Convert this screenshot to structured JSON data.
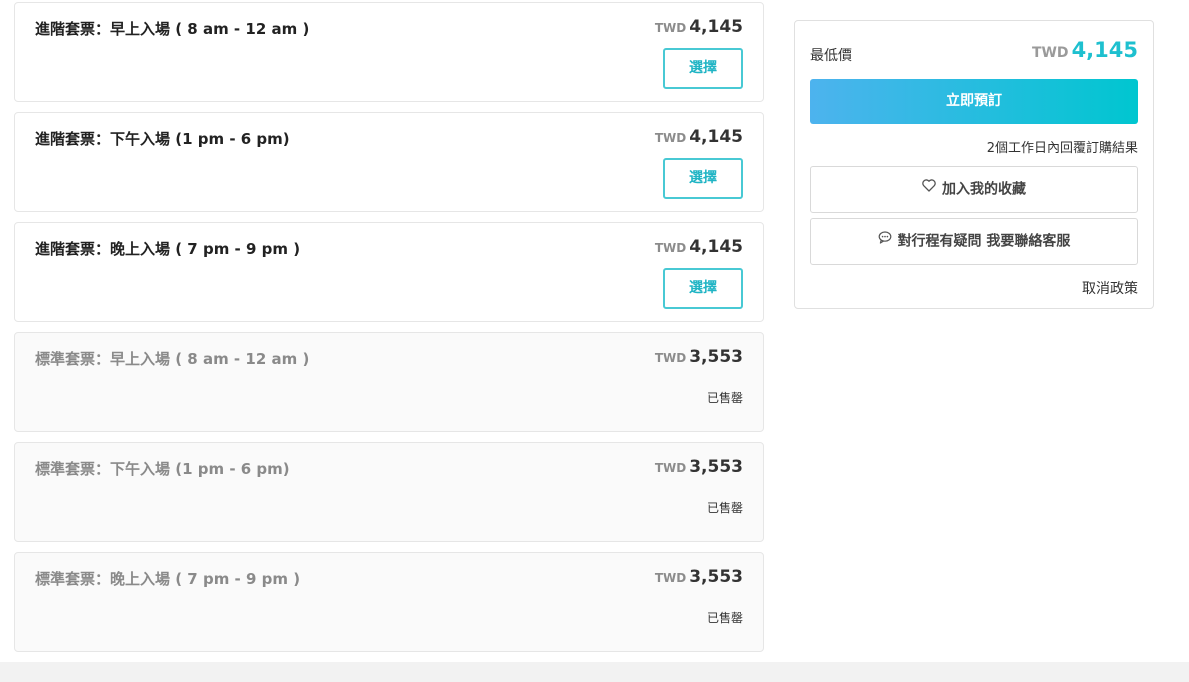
{
  "packages": [
    {
      "title": "進階套票：早上入場 ( 8 am - 12 am )",
      "currency": "TWD",
      "price": "4,145",
      "action": "選擇"
    },
    {
      "title": "進階套票：下午入場 (1 pm - 6 pm)",
      "currency": "TWD",
      "price": "4,145",
      "action": "選擇"
    },
    {
      "title": "進階套票：晚上入場 ( 7 pm - 9 pm )",
      "currency": "TWD",
      "price": "4,145",
      "action": "選擇"
    },
    {
      "title": "標準套票：早上入場 ( 8 am - 12 am )",
      "currency": "TWD",
      "price": "3,553",
      "status": "已售罄"
    },
    {
      "title": "標準套票：下午入場 (1 pm - 6 pm)",
      "currency": "TWD",
      "price": "3,553",
      "status": "已售罄"
    },
    {
      "title": "標準套票：晚上入場 ( 7 pm - 9 pm )",
      "currency": "TWD",
      "price": "3,553",
      "status": "已售罄"
    }
  ],
  "sidebar": {
    "lowest_label": "最低價",
    "currency": "TWD",
    "lowest_price": "4,145",
    "book_label": "立即預訂",
    "reply_note": "2個工作日內回覆訂購結果",
    "favorite_label": "加入我的收藏",
    "favorite_icon": "heart-outline-icon",
    "contact_label": "對行程有疑問 我要聯絡客服",
    "contact_icon": "chat-bubble-icon",
    "cancel_policy": "取消政策"
  },
  "colors": {
    "accent": "#1ec0cf",
    "button_gradient_start": "#4db3ee",
    "button_gradient_end": "#00c6d0"
  }
}
